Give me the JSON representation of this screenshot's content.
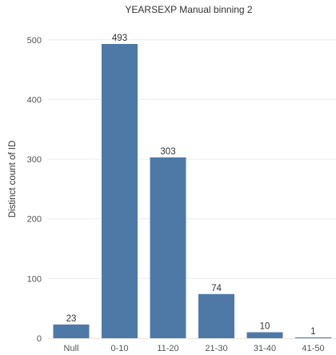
{
  "chart_data": {
    "type": "bar",
    "title": "YEARSEXP Manual binning 2",
    "xlabel": "",
    "ylabel": "Distinct count of ID",
    "categories": [
      "Null",
      "0-10",
      "11-20",
      "21-30",
      "31-40",
      "41-50"
    ],
    "values": [
      23,
      493,
      303,
      74,
      10,
      1
    ],
    "ylim": [
      0,
      535
    ],
    "yticks": [
      0,
      100,
      200,
      300,
      400,
      500
    ],
    "grid": true,
    "legend": "none",
    "bar_color": "#4e79a7",
    "grid_color": "#ececec"
  }
}
